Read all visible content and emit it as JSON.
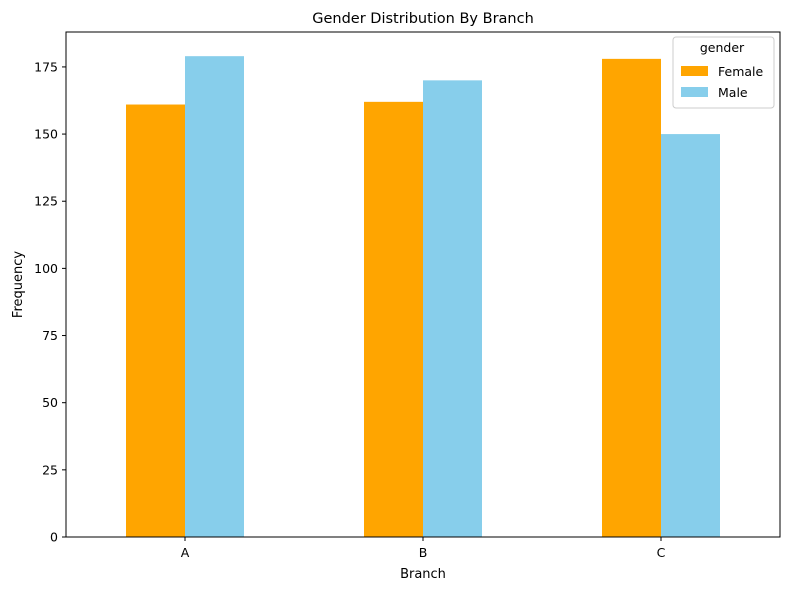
{
  "chart_data": {
    "type": "bar",
    "title": "Gender Distribution By Branch",
    "xlabel": "Branch",
    "ylabel": "Frequency",
    "categories": [
      "A",
      "B",
      "C"
    ],
    "series": [
      {
        "name": "Female",
        "values": [
          161,
          162,
          178
        ],
        "color": "#FFA500"
      },
      {
        "name": "Male",
        "values": [
          179,
          170,
          150
        ],
        "color": "#87CEEB"
      }
    ],
    "ylim": [
      0,
      188
    ],
    "yticks": [
      0,
      25,
      50,
      75,
      100,
      125,
      150,
      175
    ],
    "grid": false,
    "legend": {
      "title": "gender",
      "placement": "top-right"
    }
  }
}
